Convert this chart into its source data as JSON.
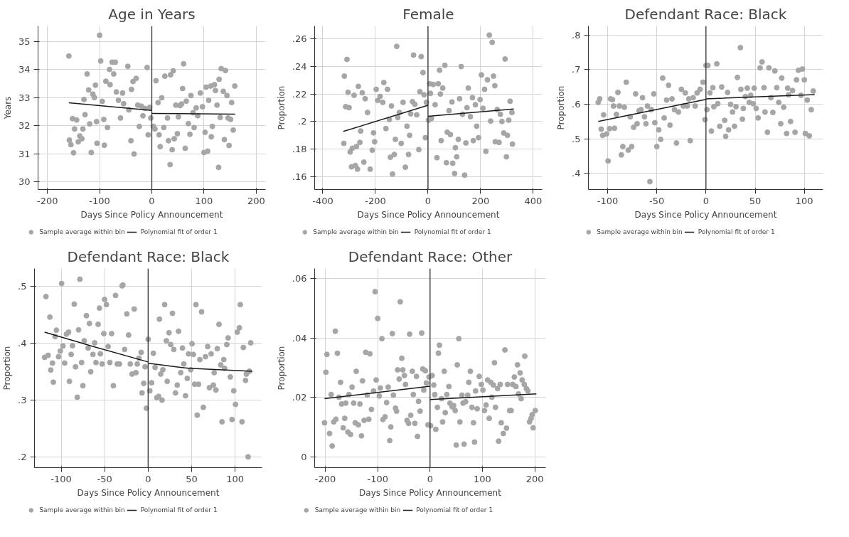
{
  "chart_data": [
    {
      "type": "scatter",
      "title": "Age in Years",
      "xlabel": "Days Since Policy Announcement",
      "ylabel": "Years",
      "xlim": [
        -218,
        218
      ],
      "ylim": [
        29.72,
        35.55
      ],
      "xticks": [
        -200,
        -100,
        0,
        100,
        200
      ],
      "yticks": [
        30,
        31,
        32,
        33,
        34,
        35
      ],
      "grid": true,
      "legend": "bottom",
      "ref_lines": [
        {
          "axis": "x",
          "value": 0,
          "color": "#333333"
        }
      ],
      "series": [
        {
          "name": "Sample average within bin",
          "marker": "circle",
          "color": "#a6a6a6",
          "x": [
            -159,
            -158,
            -155,
            -150,
            -152,
            -148,
            -144,
            -141,
            -138,
            -134,
            -130,
            -128,
            -132,
            -124,
            -121,
            -119,
            -116,
            -113,
            -110,
            -108,
            -106,
            -105,
            -100,
            -98,
            -95,
            -92,
            -91,
            -88,
            -85,
            -81,
            -80,
            -76,
            -73,
            -70,
            -68,
            -64,
            -60,
            -56,
            -54,
            -46,
            -44,
            -40,
            -39,
            -36,
            -34,
            -30,
            -27,
            -24,
            -20,
            -17,
            -13,
            -9,
            -7,
            -4,
            -2,
            3,
            6,
            8,
            12,
            14,
            16,
            19,
            23,
            25,
            30,
            32,
            35,
            36,
            39,
            41,
            43,
            46,
            49,
            51,
            54,
            57,
            59,
            61,
            64,
            66,
            70,
            73,
            75,
            79,
            81,
            85,
            88,
            93,
            97,
            100,
            102,
            104,
            107,
            109,
            113,
            114,
            116,
            120,
            122,
            125,
            128,
            129,
            131,
            133,
            137,
            139,
            141,
            144,
            146,
            148,
            151,
            153,
            156,
            159
          ],
          "values": [
            34.48,
            31.48,
            31.32,
            31.03,
            32.25,
            31.88,
            32.2,
            31.42,
            31.63,
            31.53,
            32.93,
            32.39,
            31.88,
            33.84,
            33.27,
            32.06,
            31.04,
            33.12,
            33.0,
            33.44,
            32.14,
            31.37,
            35.22,
            34.3,
            32.86,
            32.22,
            31.3,
            33.58,
            31.93,
            34.0,
            33.46,
            34.26,
            33.84,
            34.26,
            33.2,
            32.9,
            32.27,
            33.16,
            32.78,
            34.11,
            32.56,
            31.46,
            33.29,
            33.57,
            30.99,
            33.68,
            32.73,
            31.97,
            32.69,
            32.35,
            32.61,
            34.07,
            31.67,
            32.65,
            32.27,
            31.97,
            31.88,
            33.6,
            32.82,
            31.67,
            31.25,
            32.99,
            31.93,
            33.76,
            32.27,
            31.46,
            30.61,
            33.81,
            31.14,
            33.95,
            31.53,
            32.73,
            31.71,
            32.31,
            32.71,
            32.77,
            33.32,
            34.2,
            31.19,
            32.87,
            32.07,
            31.69,
            33.07,
            32.46,
            31.93,
            32.63,
            32.35,
            33.16,
            32.67,
            31.04,
            31.76,
            33.37,
            31.09,
            32.9,
            33.41,
            31.6,
            31.97,
            33.46,
            33.25,
            32.73,
            30.51,
            33.65,
            32.29,
            34.03,
            33.22,
            31.5,
            33.96,
            33.07,
            32.27,
            31.29,
            32.22,
            32.82,
            31.84,
            33.41
          ]
        },
        {
          "name": "Polynomial fit of order 1",
          "type": "line",
          "line_style": "solid",
          "color": "#1a1a1a",
          "x": [
            -159,
            0,
            null,
            0,
            160
          ],
          "values": [
            32.81,
            32.54,
            null,
            32.43,
            32.41
          ]
        }
      ]
    },
    {
      "type": "scatter",
      "title": "Female",
      "xlabel": "Days Since Policy Announcement",
      "ylabel": "Proportion",
      "xlim": [
        -431,
        434
      ],
      "ylim": [
        0.151,
        0.269
      ],
      "xticks": [
        -400,
        -200,
        0,
        200,
        400
      ],
      "yticks": [
        {
          "value": 0.16,
          "label": ".16"
        },
        {
          "value": 0.18,
          "label": ".18"
        },
        {
          "value": 0.2,
          "label": ".2"
        },
        {
          "value": 0.22,
          "label": ".22"
        },
        {
          "value": 0.24,
          "label": ".24"
        },
        {
          "value": 0.26,
          "label": ".26"
        }
      ],
      "grid": true,
      "legend": "bottom",
      "ref_lines": [
        {
          "axis": "x",
          "value": 0,
          "color": "#333333"
        }
      ],
      "series": [
        {
          "name": "Sample average within bin",
          "marker": "circle",
          "color": "#a6a6a6",
          "x": [
            -320,
            -318,
            -308,
            -313,
            -304,
            -300,
            -296,
            -291,
            -288,
            -281,
            -276,
            -272,
            -268,
            -265,
            -259,
            -256,
            -250,
            -244,
            -239,
            -230,
            -220,
            -212,
            -207,
            -203,
            -197,
            -191,
            -182,
            -172,
            -168,
            -160,
            -154,
            -147,
            -139,
            -143,
            -135,
            -128,
            -124,
            -119,
            -115,
            -109,
            -102,
            -95,
            -86,
            -80,
            -74,
            -70,
            -66,
            -59,
            -55,
            -50,
            -43,
            -35,
            -31,
            -26,
            -19,
            -15,
            -10,
            -6,
            2,
            6,
            9,
            13,
            20,
            27,
            34,
            39,
            44,
            47,
            50,
            56,
            64,
            70,
            73,
            80,
            85,
            91,
            94,
            101,
            104,
            109,
            115,
            120,
            126,
            131,
            139,
            144,
            148,
            153,
            161,
            169,
            172,
            180,
            185,
            192,
            198,
            203,
            209,
            215,
            220,
            226,
            233,
            238,
            244,
            249,
            254,
            256,
            263,
            270,
            275,
            281,
            288,
            293,
            298,
            302,
            307,
            312,
            319,
            321
          ],
          "values": [
            0.1843,
            0.2328,
            0.2449,
            0.2108,
            0.2211,
            0.2101,
            0.1781,
            0.1674,
            0.1808,
            0.219,
            0.1683,
            0.182,
            0.1657,
            0.2254,
            0.185,
            0.1932,
            0.2208,
            0.1708,
            0.2165,
            0.2066,
            0.1657,
            0.1794,
            0.1919,
            0.1855,
            0.2233,
            0.2153,
            0.2182,
            0.2139,
            0.2282,
            0.195,
            0.2233,
            0.2015,
            0.2113,
            0.1743,
            0.1622,
            0.1763,
            0.1872,
            0.2543,
            0.203,
            0.2066,
            0.1843,
            0.2139,
            0.1671,
            0.1967,
            0.1763,
            0.1901,
            0.2056,
            0.2144,
            0.248,
            0.2125,
            0.2049,
            0.1798,
            0.2216,
            0.2469,
            0.2354,
            0.2194,
            0.1884,
            0.2139,
            0.201,
            0.2273,
            0.2204,
            0.2022,
            0.2268,
            0.2122,
            0.174,
            0.2273,
            0.2371,
            0.2199,
            0.1863,
            0.2242,
            0.2406,
            0.1704,
            0.1924,
            0.2079,
            0.1907,
            0.2142,
            0.17,
            0.1626,
            0.1812,
            0.1746,
            0.1872,
            0.2165,
            0.2397,
            0.2053,
            0.1614,
            0.1846,
            0.2101,
            0.2242,
            0.2036,
            0.2173,
            0.1863,
            0.2122,
            0.1967,
            0.1884,
            0.2159,
            0.2337,
            0.2096,
            0.2233,
            0.1786,
            0.2302,
            0.2624,
            0.2004,
            0.2572,
            0.2328,
            0.2259,
            0.1855,
            0.2087,
            0.185,
            0.2053,
            0.2001,
            0.1918,
            0.2452,
            0.1746,
            0.1901,
            0.201,
            0.2147,
            0.2066,
            0.1838
          ]
        },
        {
          "name": "Polynomial fit of order 1",
          "type": "line",
          "line_style": "solid",
          "color": "#1a1a1a",
          "x": [
            -322,
            0,
            null,
            0,
            326
          ],
          "values": [
            0.1929,
            0.2118,
            null,
            0.2039,
            0.2091
          ]
        }
      ]
    },
    {
      "type": "scatter",
      "title": "Defendant Race: Black",
      "xlabel": "Days Since Policy Announcement",
      "ylabel": "Proportion",
      "xlim": [
        -119.5,
        119
      ],
      "ylim": [
        0.353,
        0.826
      ],
      "xticks": [
        -100,
        -50,
        0,
        50,
        100
      ],
      "yticks": [
        {
          "value": 0.4,
          "label": ".4"
        },
        {
          "value": 0.5,
          "label": ".5"
        },
        {
          "value": 0.6,
          "label": ".6"
        },
        {
          "value": 0.7,
          "label": ".7"
        },
        {
          "value": 0.8,
          "label": ".8"
        }
      ],
      "grid": true,
      "legend": "bottom",
      "ref_lines": [
        {
          "axis": "x",
          "value": 0,
          "color": "#333333"
        }
      ],
      "series": [
        {
          "name": "Sample average within bin",
          "marker": "circle",
          "color": "#a6a6a6",
          "x": [
            -109.5,
            -108,
            -106.5,
            -105,
            -104,
            -101,
            -99.5,
            -98,
            -97,
            -95,
            -94,
            -93,
            -91,
            -89.5,
            -88,
            -86,
            -84.5,
            -83,
            -81,
            -79,
            -77,
            -75.5,
            -73.5,
            -71.5,
            -70,
            -68,
            -66,
            -64.5,
            -62.5,
            -61,
            -59.5,
            -57,
            -55.5,
            -53,
            -52,
            -50,
            -48,
            -46,
            -44,
            -42.5,
            -40,
            -38,
            -36.5,
            -34.5,
            -32,
            -30,
            -28,
            -25,
            -23,
            -21,
            -19,
            -17.5,
            -16,
            -13,
            -11,
            -9,
            -6,
            -3,
            -1,
            0,
            1,
            2,
            4,
            5.5,
            7,
            8,
            11,
            12,
            14,
            16,
            19,
            20,
            22,
            23,
            25,
            27,
            29,
            30.5,
            32,
            35,
            35.5,
            37,
            38,
            40,
            42,
            44,
            45.5,
            48,
            49,
            51,
            53,
            55,
            57,
            59,
            60,
            62.5,
            64,
            66,
            68,
            70,
            72,
            74,
            76,
            77,
            79,
            82,
            83,
            84,
            86,
            88,
            90.5,
            92,
            94,
            96.5,
            98,
            100,
            101,
            103,
            105,
            107,
            109
          ],
          "values": [
            0.6048,
            0.6152,
            0.5276,
            0.5097,
            0.569,
            0.5138,
            0.4359,
            0.529,
            0.6152,
            0.6131,
            0.5945,
            0.5303,
            0.5703,
            0.6338,
            0.5945,
            0.4531,
            0.4772,
            0.591,
            0.6634,
            0.4669,
            0.5634,
            0.4772,
            0.5331,
            0.6297,
            0.5434,
            0.5807,
            0.5841,
            0.6186,
            0.5634,
            0.5434,
            0.5945,
            0.3759,
            0.5841,
            0.6297,
            0.5462,
            0.4772,
            0.5255,
            0.4979,
            0.6752,
            0.56,
            0.6117,
            0.6545,
            0.5393,
            0.6152,
            0.5841,
            0.4876,
            0.5772,
            0.6428,
            0.5945,
            0.6324,
            0.5945,
            0.6152,
            0.4945,
            0.6186,
            0.5945,
            0.6324,
            0.6428,
            0.6634,
            0.5552,
            0.7117,
            0.5841,
            0.7117,
            0.6324,
            0.5221,
            0.6476,
            0.5924,
            0.7166,
            0.6014,
            0.5359,
            0.6497,
            0.5531,
            0.5069,
            0.6338,
            0.5255,
            0.5993,
            0.5772,
            0.5359,
            0.5924,
            0.6772,
            0.7634,
            0.6428,
            0.5566,
            0.5876,
            0.6221,
            0.6462,
            0.6048,
            0.6255,
            0.6014,
            0.6462,
            0.5876,
            0.56,
            0.7048,
            0.7221,
            0.6476,
            0.5772,
            0.5186,
            0.7048,
            0.6186,
            0.5759,
            0.6959,
            0.6476,
            0.6048,
            0.5434,
            0.6752,
            0.591,
            0.5152,
            0.6462,
            0.6269,
            0.5497,
            0.6393,
            0.5186,
            0.6703,
            0.6979,
            0.6255,
            0.7014,
            0.6703,
            0.5152,
            0.6117,
            0.5083,
            0.5841,
            0.6379
          ]
        },
        {
          "name": "Polynomial fit of order 1",
          "type": "line",
          "line_style": "solid",
          "color": "#1a1a1a",
          "x": [
            -109.5,
            0,
            null,
            0,
            110.5
          ],
          "values": [
            0.5497,
            0.6138,
            null,
            0.6152,
            0.6276
          ]
        }
      ]
    },
    {
      "type": "scatter",
      "title": "Defendant Race: Black",
      "xlabel": "Days Since Policy Announcement",
      "ylabel": "Proportion",
      "xlim": [
        -130.7,
        131
      ],
      "ylim": [
        0.181,
        0.531
      ],
      "xticks": [
        -100,
        -50,
        0,
        50,
        100
      ],
      "yticks": [
        {
          "value": 0.2,
          "label": ".2"
        },
        {
          "value": 0.3,
          "label": ".3"
        },
        {
          "value": 0.4,
          "label": ".4"
        },
        {
          "value": 0.5,
          "label": ".5"
        }
      ],
      "grid": true,
      "legend": "bottom",
      "ref_lines": [
        {
          "axis": "x",
          "value": 0,
          "color": "#333333"
        }
      ],
      "series": [
        {
          "name": "Sample average within bin",
          "marker": "circle",
          "color": "#a6a6a6",
          "x": [
            -119,
            -117.5,
            -115,
            -113,
            -112,
            -110,
            -109,
            -107,
            -105.5,
            -103,
            -101,
            -99.5,
            -98,
            -96,
            -94,
            -91.5,
            -90.5,
            -88.5,
            -87,
            -85,
            -83.5,
            -81.5,
            -80,
            -78.5,
            -76.5,
            -75,
            -73.5,
            -71,
            -69,
            -67.5,
            -66,
            -63.5,
            -61.5,
            -60,
            -57.5,
            -56,
            -55,
            -53,
            -51,
            -50,
            -48,
            -46,
            -44,
            -42,
            -40,
            -37.5,
            -35.5,
            -33,
            -30,
            -29,
            -27,
            -24.5,
            -22.5,
            -20.5,
            -18.5,
            -16,
            -14,
            -12.5,
            -10.5,
            -8,
            -7,
            -5,
            -3.5,
            -2,
            0,
            2,
            4,
            6,
            8,
            10,
            12,
            13,
            14.5,
            16,
            17,
            19,
            21,
            22,
            24,
            26,
            28,
            29.5,
            31.5,
            33.5,
            35,
            37.5,
            39.5,
            41,
            43,
            45,
            46.5,
            49,
            50.5,
            52,
            53.5,
            55,
            56.5,
            58,
            59.5,
            61.5,
            63.5,
            66,
            68.5,
            70.5,
            72.5,
            75,
            76,
            78,
            79.5,
            81.5,
            83.5,
            85,
            87,
            88,
            90.5,
            92,
            94.5,
            96.5,
            98.5,
            100.5,
            102.5,
            105,
            106,
            108,
            109.5,
            112,
            113,
            115,
            116.5,
            118
          ],
          "values": [
            0.3749,
            0.4817,
            0.3785,
            0.4456,
            0.3526,
            0.3648,
            0.3312,
            0.4115,
            0.4227,
            0.376,
            0.3861,
            0.5046,
            0.3948,
            0.3648,
            0.4156,
            0.4192,
            0.3327,
            0.38,
            0.3953,
            0.4685,
            0.3582,
            0.3048,
            0.4232,
            0.5122,
            0.3658,
            0.3251,
            0.4039,
            0.4481,
            0.3912,
            0.4344,
            0.3495,
            0.38,
            0.4004,
            0.3658,
            0.4329,
            0.4614,
            0.381,
            0.3632,
            0.4166,
            0.4766,
            0.4675,
            0.3937,
            0.3658,
            0.4166,
            0.3251,
            0.4837,
            0.3632,
            0.3632,
            0.5005,
            0.502,
            0.3887,
            0.4512,
            0.4141,
            0.3632,
            0.3455,
            0.4598,
            0.348,
            0.3632,
            0.3734,
            0.3836,
            0.3124,
            0.3292,
            0.3582,
            0.2855,
            0.4065,
            0.316,
            0.3302,
            0.382,
            0.3571,
            0.3038,
            0.3063,
            0.442,
            0.3455,
            0.2997,
            0.3531,
            0.4675,
            0.4039,
            0.3327,
            0.4181,
            0.3973,
            0.4522,
            0.3887,
            0.3124,
            0.3261,
            0.4207,
            0.348,
            0.3912,
            0.3632,
            0.3073,
            0.3378,
            0.381,
            0.3531,
            0.3988,
            0.38,
            0.3276,
            0.4675,
            0.2733,
            0.3276,
            0.3709,
            0.4548,
            0.287,
            0.376,
            0.3937,
            0.3215,
            0.381,
            0.3261,
            0.348,
            0.3175,
            0.3902,
            0.4329,
            0.3617,
            0.2616,
            0.3709,
            0.3556,
            0.3973,
            0.409,
            0.3404,
            0.2656,
            0.316,
            0.2921,
            0.4192,
            0.4268,
            0.4675,
            0.2616,
            0.3922,
            0.3343,
            0.3455,
            0.2,
            0.3505,
            0.4004
          ]
        },
        {
          "name": "Polynomial fit of order 1",
          "type": "line",
          "line_style": "solid",
          "color": "#1a1a1a",
          "x": [
            -119,
            -63,
            0,
            null,
            0,
            46.5,
            120
          ],
          "values": [
            0.4192,
            0.3937,
            0.3668,
            null,
            0.3643,
            0.3556,
            0.3505
          ]
        }
      ]
    },
    {
      "type": "scatter",
      "title": "Defendant Race: Other",
      "xlabel": "Days Since Policy Announcement",
      "ylabel": "Proportion",
      "xlim": [
        -220.5,
        221
      ],
      "ylim": [
        -0.0036,
        0.0634
      ],
      "xticks": [
        -200,
        -100,
        0,
        100,
        200
      ],
      "yticks": [
        0,
        {
          "value": 0.02,
          "label": ".02"
        },
        {
          "value": 0.04,
          "label": ".04"
        },
        {
          "value": 0.06,
          "label": ".06"
        }
      ],
      "grid": true,
      "legend": "bottom",
      "ref_lines": [
        {
          "axis": "x",
          "value": 0,
          "color": "#333333"
        }
      ],
      "series": [
        {
          "name": "Sample average within bin",
          "marker": "circle",
          "color": "#a6a6a6",
          "x": [
            -201.6,
            -199,
            -197,
            -192,
            -189,
            -187,
            -184,
            -181,
            -180,
            -177,
            -174,
            -171,
            -169,
            -166,
            -163,
            -161,
            -157,
            -155,
            -152,
            -149,
            -146,
            -143,
            -141,
            -137,
            -134,
            -131,
            -129,
            -126,
            -123,
            -120,
            -117,
            -115,
            -112,
            -108,
            -105,
            -103,
            -100,
            -97,
            -95,
            -92,
            -90,
            -86,
            -83,
            -80,
            -77,
            -75,
            -72,
            -70,
            -66,
            -64,
            -62,
            -59,
            -57,
            -54,
            -52,
            -49,
            -47,
            -44,
            -41,
            -39,
            -37,
            -34,
            -32,
            -29,
            -26,
            -24,
            -22,
            -19,
            -16,
            -14,
            -12,
            -9,
            -7,
            -4,
            -2,
            1,
            4,
            7,
            9,
            11,
            14,
            16,
            18,
            22,
            24,
            27,
            29,
            32,
            36,
            38,
            42,
            45,
            48,
            50,
            52,
            55,
            57,
            61,
            63,
            65,
            68,
            72,
            74,
            77,
            80,
            83,
            85,
            87,
            90,
            94,
            98,
            101,
            104,
            107,
            110,
            113,
            116,
            118,
            121,
            123,
            125,
            129,
            131,
            134,
            136,
            140,
            143,
            146,
            148,
            152,
            155,
            158,
            161,
            164,
            167,
            169,
            172,
            174,
            176,
            180,
            181,
            184,
            187,
            190,
            193,
            195,
            197,
            201
          ],
          "values": [
            0.0115,
            0.0285,
            0.0345,
            0.0079,
            0.021,
            0.0037,
            0.0118,
            0.0423,
            0.0127,
            0.0349,
            0.0201,
            0.0251,
            0.0178,
            0.0098,
            0.013,
            0.0181,
            0.0084,
            0.021,
            0.0076,
            0.0235,
            0.0181,
            0.0115,
            0.0288,
            0.0108,
            0.0178,
            0.0071,
            0.0256,
            0.0123,
            0.0352,
            0.0208,
            0.0127,
            0.0347,
            0.016,
            0.0222,
            0.0556,
            0.0259,
            0.0466,
            0.0205,
            0.0232,
            0.0398,
            0.0126,
            0.0135,
            0.0183,
            0.0235,
            0.0055,
            0.0101,
            0.0415,
            0.0208,
            0.0164,
            0.0154,
            0.0293,
            0.0262,
            0.0522,
            0.0332,
            0.0293,
            0.0274,
            0.0244,
            0.0123,
            0.0113,
            0.0413,
            0.014,
            0.0288,
            0.021,
            0.0113,
            0.0271,
            0.0069,
            0.0187,
            0.0154,
            0.0417,
            0.0296,
            0.0225,
            0.029,
            0.0249,
            0.0108,
            0.0269,
            0.0105,
            0.0274,
            0.0242,
            0.021,
            0.0093,
            0.0167,
            0.0349,
            0.0376,
            0.0196,
            0.0118,
            0.0288,
            0.0149,
            0.021,
            0.0237,
            0.0181,
            0.0169,
            0.0173,
            0.0156,
            0.004,
            0.031,
            0.0398,
            0.0118,
            0.0208,
            0.0181,
            0.0043,
            0.0186,
            0.0208,
            0.0251,
            0.0288,
            0.0167,
            0.0115,
            0.005,
            0.0222,
            0.0162,
            0.0271,
            0.0244,
            0.0225,
            0.0156,
            0.0175,
            0.0259,
            0.013,
            0.0251,
            0.0201,
            0.0242,
            0.0317,
            0.0167,
            0.023,
            0.0053,
            0.0244,
            0.0115,
            0.0079,
            0.036,
            0.0097,
            0.0244,
            0.0156,
            0.0156,
            0.0244,
            0.0269,
            0.0237,
            0.031,
            0.0212,
            0.0283,
            0.0196,
            0.0259,
            0.0244,
            0.0339,
            0.023,
            0.0222,
            0.0118,
            0.013,
            0.0142,
            0.0098,
            0.0156
          ]
        },
        {
          "name": "Polynomial fit of order 1",
          "type": "line",
          "line_style": "solid",
          "color": "#1a1a1a",
          "x": [
            -201.6,
            0,
            null,
            0,
            203
          ],
          "values": [
            0.0196,
            0.0238,
            null,
            0.0193,
            0.0212
          ]
        }
      ]
    }
  ]
}
